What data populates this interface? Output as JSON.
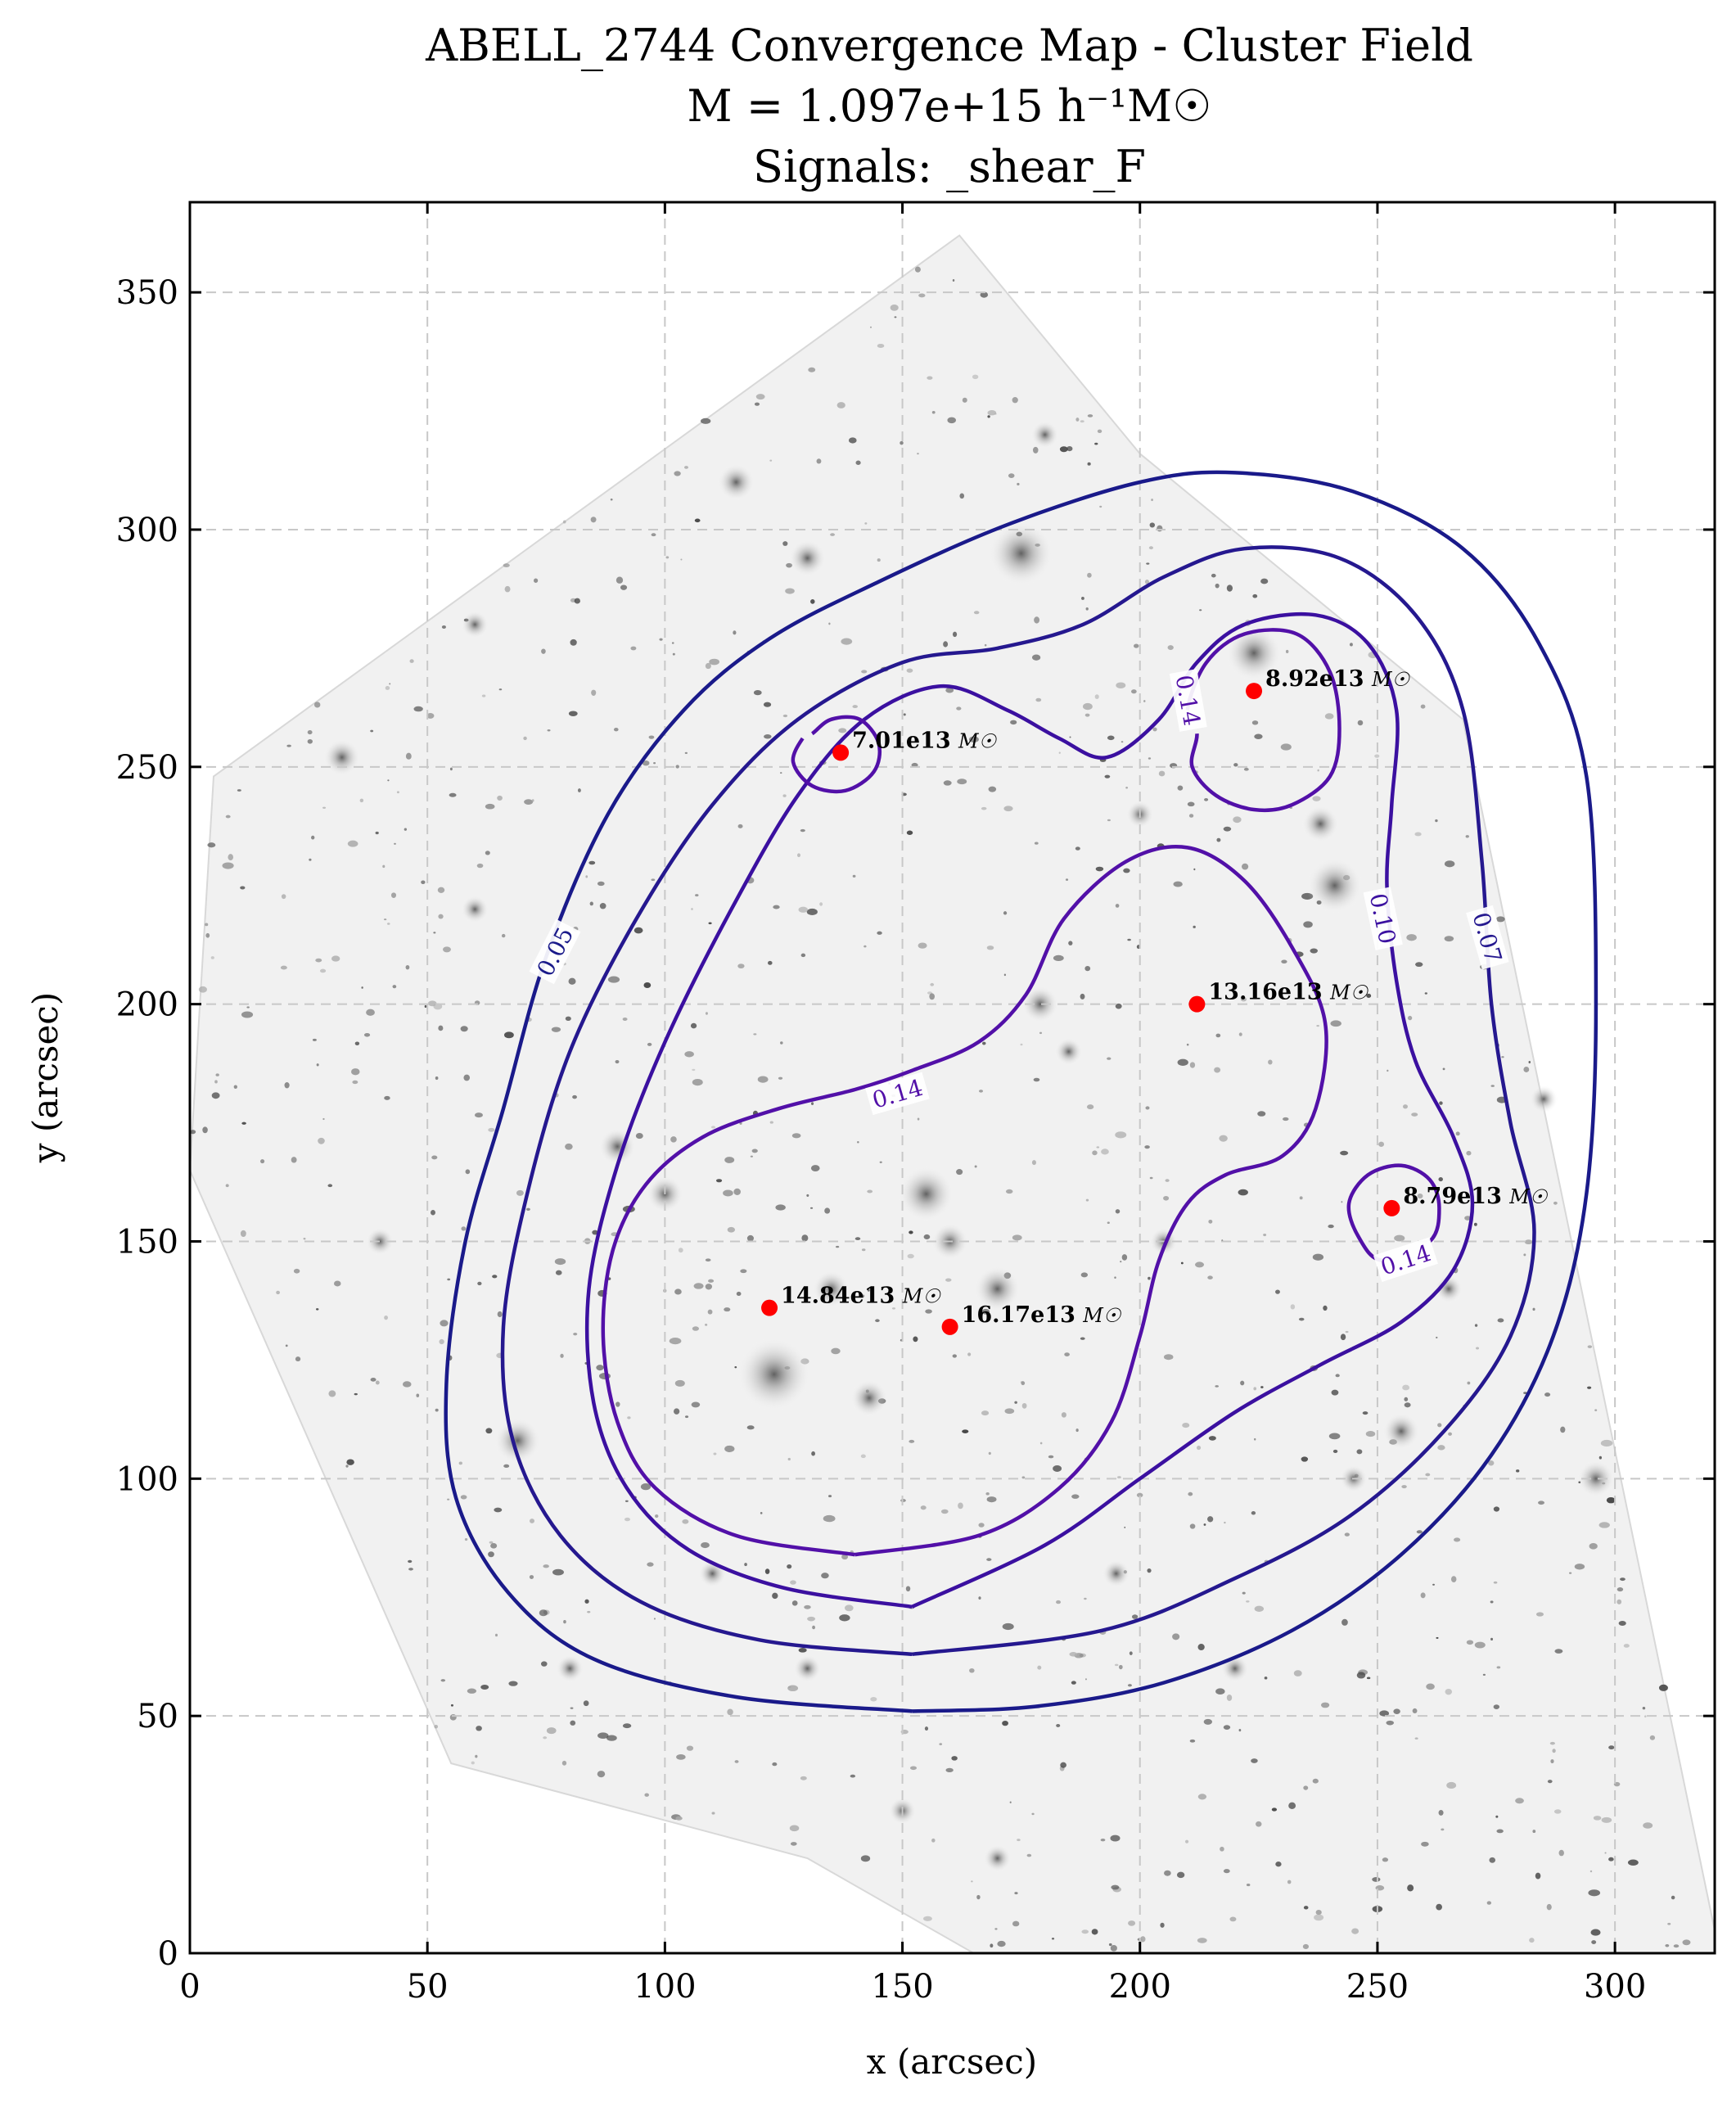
{
  "chart_data": {
    "type": "contour",
    "title": [
      "ABELL_2744 Convergence Map - Cluster Field",
      "M = 1.097e+15 h⁻¹M☉",
      "Signals: _shear_F"
    ],
    "xlabel": "x (arcsec)",
    "ylabel": "y (arcsec)",
    "xlim": [
      0,
      321
    ],
    "ylim": [
      0,
      369
    ],
    "xticks": [
      0,
      50,
      100,
      150,
      200,
      250,
      300
    ],
    "yticks": [
      0,
      50,
      100,
      150,
      200,
      250,
      300,
      350
    ],
    "grid": true,
    "background": "grayscale cluster field image",
    "contour_levels": [
      0.05,
      0.07,
      0.1,
      0.14
    ],
    "contours": [
      {
        "level": "0.05",
        "color": "#1a1a8a",
        "points": [
          [
            152,
            51
          ],
          [
            115,
            54
          ],
          [
            85,
            62
          ],
          [
            67,
            76
          ],
          [
            56,
            96
          ],
          [
            54,
            120
          ],
          [
            58,
            150
          ],
          [
            66,
            178
          ],
          [
            75,
            210
          ],
          [
            88,
            240
          ],
          [
            104,
            262
          ],
          [
            122,
            277
          ],
          [
            145,
            289
          ],
          [
            172,
            301
          ],
          [
            200,
            310
          ],
          [
            220,
            312
          ],
          [
            245,
            308
          ],
          [
            268,
            296
          ],
          [
            284,
            276
          ],
          [
            294,
            248
          ],
          [
            296,
            200
          ],
          [
            294,
            160
          ],
          [
            287,
            130
          ],
          [
            274,
            105
          ],
          [
            255,
            84
          ],
          [
            232,
            68
          ],
          [
            205,
            57
          ],
          [
            178,
            52
          ],
          [
            152,
            51
          ]
        ],
        "labels": [
          {
            "text": "0.05",
            "x": 77,
            "y": 211,
            "angle": -63
          }
        ]
      },
      {
        "level": "0.07",
        "color": "#25188f",
        "points": [
          [
            152,
            63
          ],
          [
            120,
            66
          ],
          [
            95,
            74
          ],
          [
            78,
            88
          ],
          [
            68,
            108
          ],
          [
            66,
            132
          ],
          [
            71,
            160
          ],
          [
            80,
            190
          ],
          [
            94,
            218
          ],
          [
            110,
            242
          ],
          [
            128,
            260
          ],
          [
            150,
            272
          ],
          [
            170,
            275
          ],
          [
            188,
            280
          ],
          [
            205,
            290
          ],
          [
            222,
            296
          ],
          [
            242,
            294
          ],
          [
            258,
            282
          ],
          [
            268,
            262
          ],
          [
            272,
            230
          ],
          [
            274,
            200
          ],
          [
            278,
            175
          ],
          [
            283,
            152
          ],
          [
            278,
            130
          ],
          [
            264,
            110
          ],
          [
            244,
            92
          ],
          [
            220,
            79
          ],
          [
            192,
            68
          ],
          [
            152,
            63
          ]
        ],
        "labels": [
          {
            "text": "0.07",
            "x": 273,
            "y": 214,
            "angle": 74
          }
        ]
      },
      {
        "level": "0.10",
        "color": "#3b10a0",
        "points": [
          [
            152,
            73
          ],
          [
            125,
            77
          ],
          [
            105,
            85
          ],
          [
            92,
            98
          ],
          [
            85,
            116
          ],
          [
            84,
            140
          ],
          [
            90,
            166
          ],
          [
            100,
            192
          ],
          [
            114,
            220
          ],
          [
            128,
            244
          ],
          [
            142,
            260
          ],
          [
            158,
            267
          ],
          [
            172,
            262
          ],
          [
            183,
            256
          ],
          [
            193,
            252
          ],
          [
            204,
            260
          ],
          [
            212,
            272
          ],
          [
            222,
            280
          ],
          [
            237,
            282
          ],
          [
            248,
            276
          ],
          [
            254,
            262
          ],
          [
            253,
            242
          ],
          [
            252,
            225
          ],
          [
            254,
            205
          ],
          [
            258,
            188
          ],
          [
            266,
            172
          ],
          [
            270,
            158
          ],
          [
            266,
            144
          ],
          [
            255,
            133
          ],
          [
            238,
            124
          ],
          [
            220,
            114
          ],
          [
            200,
            100
          ],
          [
            180,
            86
          ],
          [
            152,
            73
          ]
        ],
        "labels": [
          {
            "text": "0.10",
            "x": 251,
            "y": 218,
            "angle": 78
          }
        ]
      },
      {
        "level": "0.14",
        "color": "#5210a8",
        "points": [
          [
            140,
            84
          ],
          [
            115,
            88
          ],
          [
            98,
            98
          ],
          [
            90,
            112
          ],
          [
            87,
            130
          ],
          [
            89,
            148
          ],
          [
            96,
            162
          ],
          [
            108,
            172
          ],
          [
            124,
            178
          ],
          [
            140,
            182
          ],
          [
            152,
            186
          ],
          [
            166,
            192
          ],
          [
            176,
            202
          ],
          [
            184,
            218
          ],
          [
            197,
            230
          ],
          [
            210,
            233
          ],
          [
            222,
            226
          ],
          [
            232,
            212
          ],
          [
            239,
            196
          ],
          [
            237,
            178
          ],
          [
            230,
            168
          ],
          [
            218,
            164
          ],
          [
            210,
            158
          ],
          [
            204,
            146
          ],
          [
            200,
            130
          ],
          [
            194,
            112
          ],
          [
            183,
            98
          ],
          [
            166,
            88
          ],
          [
            140,
            84
          ]
        ],
        "labels": [
          {
            "text": "0.14",
            "x": 149,
            "y": 181,
            "angle": -16
          }
        ]
      },
      {
        "level": "0.14",
        "color": "#5210a8",
        "points": [
          [
            129,
            256
          ],
          [
            127,
            251
          ],
          [
            131,
            246
          ],
          [
            138,
            245
          ],
          [
            144,
            249
          ],
          [
            145,
            255
          ],
          [
            141,
            260
          ],
          [
            135,
            260
          ],
          [
            131,
            257
          ]
        ],
        "labels": []
      },
      {
        "level": "0.14",
        "color": "#5210a8",
        "points": [
          [
            210,
            262
          ],
          [
            214,
            272
          ],
          [
            222,
            278
          ],
          [
            233,
            278
          ],
          [
            240,
            270
          ],
          [
            242,
            258
          ],
          [
            240,
            248
          ],
          [
            232,
            242
          ],
          [
            224,
            241
          ],
          [
            216,
            244
          ],
          [
            211,
            250
          ],
          [
            212,
            257
          ]
        ],
        "labels": [
          {
            "text": "0.14",
            "x": 210,
            "y": 264,
            "angle": 80
          }
        ]
      },
      {
        "level": "0.14",
        "color": "#5210a8",
        "points": [
          [
            251,
            146
          ],
          [
            246,
            151
          ],
          [
            244,
            158
          ],
          [
            248,
            164
          ],
          [
            255,
            166
          ],
          [
            261,
            163
          ],
          [
            263,
            157
          ],
          [
            261,
            150
          ]
        ],
        "labels": [
          {
            "text": "0.14",
            "x": 256,
            "y": 146,
            "angle": -18
          }
        ]
      }
    ],
    "peaks": [
      {
        "x": 137,
        "y": 253,
        "mass": "7.01e13",
        "unit": "M☉"
      },
      {
        "x": 224,
        "y": 266,
        "mass": "8.92e13",
        "unit": "M☉"
      },
      {
        "x": 212,
        "y": 200,
        "mass": "13.16e13",
        "unit": "M☉"
      },
      {
        "x": 253,
        "y": 157,
        "mass": "8.79e13",
        "unit": "M☉"
      },
      {
        "x": 122,
        "y": 136,
        "mass": "14.84e13",
        "unit": "M☉"
      },
      {
        "x": 160,
        "y": 132,
        "mass": "16.17e13",
        "unit": "M☉"
      }
    ],
    "peak_color": "#ff0000",
    "galaxies": [
      {
        "x": 175,
        "y": 295,
        "r": 7
      },
      {
        "x": 123,
        "y": 122,
        "r": 8
      },
      {
        "x": 155,
        "y": 160,
        "r": 6
      },
      {
        "x": 224,
        "y": 274,
        "r": 6
      },
      {
        "x": 69,
        "y": 108,
        "r": 5
      },
      {
        "x": 241,
        "y": 225,
        "r": 6
      },
      {
        "x": 143,
        "y": 117,
        "r": 4
      },
      {
        "x": 130,
        "y": 294,
        "r": 4
      },
      {
        "x": 32,
        "y": 252,
        "r": 4
      },
      {
        "x": 60,
        "y": 220,
        "r": 3
      },
      {
        "x": 179,
        "y": 200,
        "r": 4
      },
      {
        "x": 170,
        "y": 140,
        "r": 5
      },
      {
        "x": 255,
        "y": 110,
        "r": 4
      },
      {
        "x": 296,
        "y": 100,
        "r": 4
      },
      {
        "x": 185,
        "y": 190,
        "r": 3
      },
      {
        "x": 100,
        "y": 160,
        "r": 4
      },
      {
        "x": 205,
        "y": 150,
        "r": 3
      },
      {
        "x": 160,
        "y": 150,
        "r": 4
      },
      {
        "x": 135,
        "y": 140,
        "r": 4
      },
      {
        "x": 245,
        "y": 100,
        "r": 3
      },
      {
        "x": 220,
        "y": 60,
        "r": 3
      },
      {
        "x": 110,
        "y": 80,
        "r": 3
      },
      {
        "x": 80,
        "y": 60,
        "r": 3
      },
      {
        "x": 170,
        "y": 20,
        "r": 3
      },
      {
        "x": 150,
        "y": 30,
        "r": 3
      },
      {
        "x": 90,
        "y": 170,
        "r": 4
      },
      {
        "x": 265,
        "y": 140,
        "r": 3
      },
      {
        "x": 200,
        "y": 240,
        "r": 3
      },
      {
        "x": 115,
        "y": 310,
        "r": 4
      },
      {
        "x": 180,
        "y": 320,
        "r": 3
      },
      {
        "x": 60,
        "y": 280,
        "r": 3
      },
      {
        "x": 40,
        "y": 150,
        "r": 3
      },
      {
        "x": 285,
        "y": 180,
        "r": 3
      },
      {
        "x": 195,
        "y": 80,
        "r": 3
      },
      {
        "x": 130,
        "y": 60,
        "r": 3
      },
      {
        "x": 238,
        "y": 238,
        "r": 4
      }
    ]
  }
}
